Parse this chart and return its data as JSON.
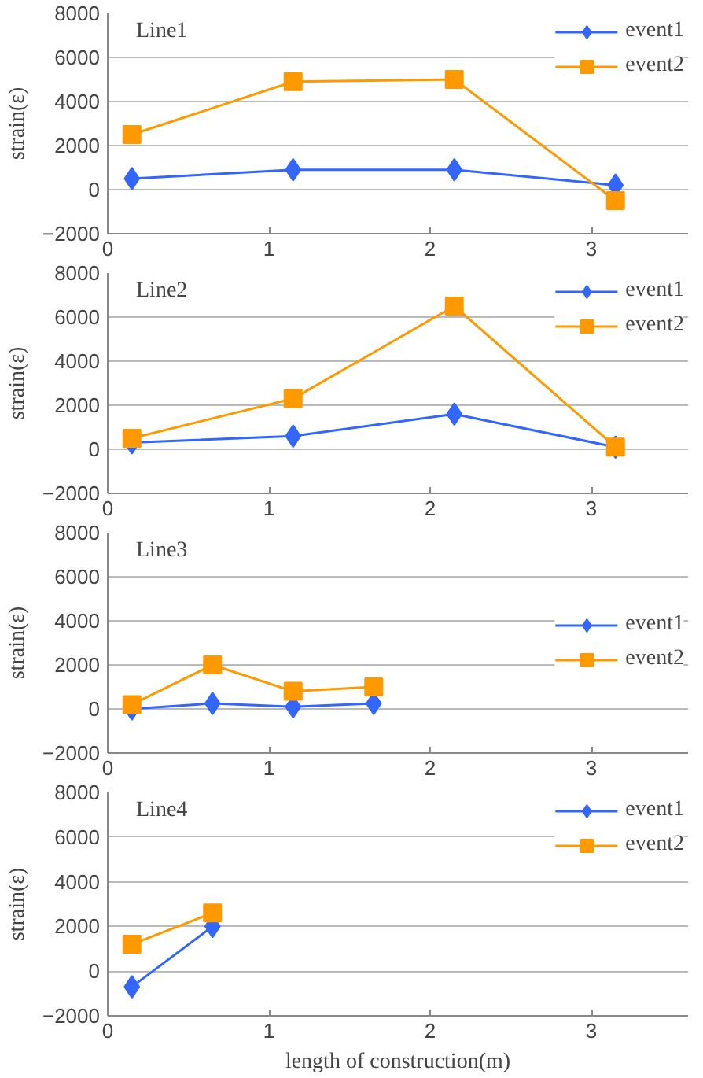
{
  "chart_data": [
    {
      "type": "line",
      "annotations": [
        "Line1"
      ],
      "ylabel": "strain(ε)",
      "xlim": [
        0,
        3.6
      ],
      "xticks": [
        0,
        1,
        2,
        3
      ],
      "ylim": [
        -2000,
        8000
      ],
      "yticks": [
        -2000,
        0,
        2000,
        4000,
        6000,
        8000
      ],
      "grid": "y",
      "legend": "top right",
      "series": [
        {
          "name": "event1",
          "color": "#3366ff",
          "marker": "diamond",
          "x": [
            0.15,
            1.15,
            2.15,
            3.15
          ],
          "values": [
            500,
            900,
            900,
            200
          ]
        },
        {
          "name": "event2",
          "color": "#ff9900",
          "marker": "square",
          "x": [
            0.15,
            1.15,
            2.15,
            3.15
          ],
          "values": [
            2500,
            4900,
            5000,
            -500
          ]
        }
      ]
    },
    {
      "type": "line",
      "annotations": [
        "Line2"
      ],
      "ylabel": "strain(ε)",
      "xlim": [
        0,
        3.6
      ],
      "xticks": [
        0,
        1,
        2,
        3
      ],
      "ylim": [
        -2000,
        8000
      ],
      "yticks": [
        -2000,
        0,
        2000,
        4000,
        6000,
        8000
      ],
      "grid": "y",
      "legend": "top right",
      "series": [
        {
          "name": "event1",
          "color": "#3366ff",
          "marker": "diamond",
          "x": [
            0.15,
            1.15,
            2.15,
            3.15
          ],
          "values": [
            300,
            600,
            1600,
            100
          ]
        },
        {
          "name": "event2",
          "color": "#ff9900",
          "marker": "square",
          "x": [
            0.15,
            1.15,
            2.15,
            3.15
          ],
          "values": [
            500,
            2300,
            6500,
            100
          ]
        }
      ]
    },
    {
      "type": "line",
      "annotations": [
        "Line3"
      ],
      "ylabel": "strain(ε)",
      "xlim": [
        0,
        3.6
      ],
      "xticks": [
        0,
        1,
        2,
        3
      ],
      "ylim": [
        -2000,
        8000
      ],
      "yticks": [
        -2000,
        0,
        2000,
        4000,
        6000,
        8000
      ],
      "grid": "y",
      "legend": "right",
      "series": [
        {
          "name": "event1",
          "color": "#3366ff",
          "marker": "diamond",
          "x": [
            0.15,
            0.65,
            1.15,
            1.65
          ],
          "values": [
            0,
            250,
            100,
            250
          ]
        },
        {
          "name": "event2",
          "color": "#ff9900",
          "marker": "square",
          "x": [
            0.15,
            0.65,
            1.15,
            1.65
          ],
          "values": [
            200,
            2000,
            800,
            1000
          ]
        }
      ]
    },
    {
      "type": "line",
      "annotations": [
        "Line4"
      ],
      "xlabel": "length of construction(m)",
      "ylabel": "strain(ε)",
      "xlim": [
        0,
        3.6
      ],
      "xticks": [
        0,
        1,
        2,
        3
      ],
      "ylim": [
        -2000,
        8000
      ],
      "yticks": [
        -2000,
        0,
        2000,
        4000,
        6000,
        8000
      ],
      "grid": "y",
      "legend": "top right",
      "series": [
        {
          "name": "event1",
          "color": "#3366ff",
          "marker": "diamond",
          "x": [
            0.15,
            0.65
          ],
          "values": [
            -700,
            2000
          ]
        },
        {
          "name": "event2",
          "color": "#ff9900",
          "marker": "square",
          "x": [
            0.15,
            0.65
          ],
          "values": [
            1200,
            2600
          ]
        }
      ]
    }
  ]
}
